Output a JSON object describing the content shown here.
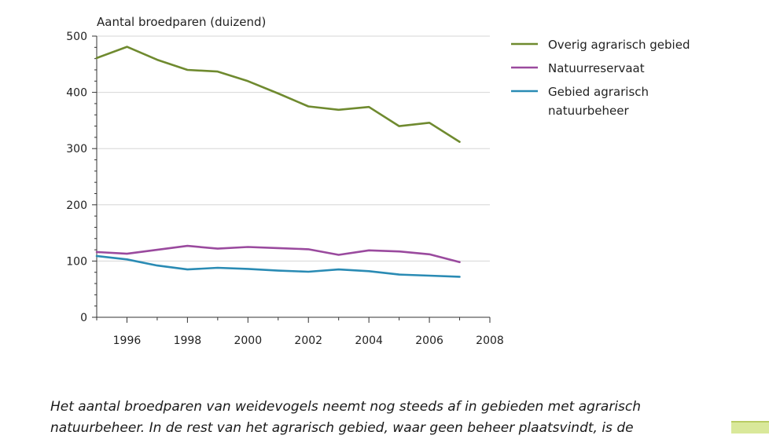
{
  "chart_data": {
    "type": "line",
    "ylabel": "Aantal broedparen (duizend)",
    "xlabel": "",
    "xlim": [
      1995,
      2008
    ],
    "ylim": [
      0,
      500
    ],
    "xticks": [
      1996,
      1998,
      2000,
      2002,
      2004,
      2006,
      2008
    ],
    "yticks": [
      0,
      100,
      200,
      300,
      400,
      500
    ],
    "grid": "horizontal",
    "legend_position": "right",
    "x": [
      1995,
      1996,
      1997,
      1998,
      1999,
      2000,
      2001,
      2002,
      2003,
      2004,
      2005,
      2006,
      2007
    ],
    "series": [
      {
        "name": "Overig agrarisch gebied",
        "color": "#6f8a2f",
        "values": [
          461,
          481,
          458,
          440,
          437,
          420,
          398,
          375,
          369,
          374,
          340,
          346,
          312
        ]
      },
      {
        "name": "Natuurreservaat",
        "color": "#9a4a9e",
        "values": [
          116,
          113,
          120,
          127,
          122,
          125,
          123,
          121,
          111,
          119,
          117,
          112,
          98
        ]
      },
      {
        "name": "Gebied agrarisch natuurbeheer",
        "color": "#2a8bb4",
        "values": [
          109,
          103,
          92,
          85,
          88,
          86,
          83,
          81,
          85,
          82,
          76,
          74,
          72
        ]
      }
    ]
  },
  "legend_lines": [
    [
      "Overig agrarisch gebied"
    ],
    [
      "Natuurreservaat"
    ],
    [
      "Gebied agrarisch",
      "natuurbeheer"
    ]
  ],
  "caption": {
    "line1": "Het aantal broedparen van weidevogels neemt nog steeds af in gebieden met agrarisch",
    "line2": "natuurbeheer. In de rest van het agrarisch gebied, waar geen beheer plaatsvindt, is de"
  }
}
